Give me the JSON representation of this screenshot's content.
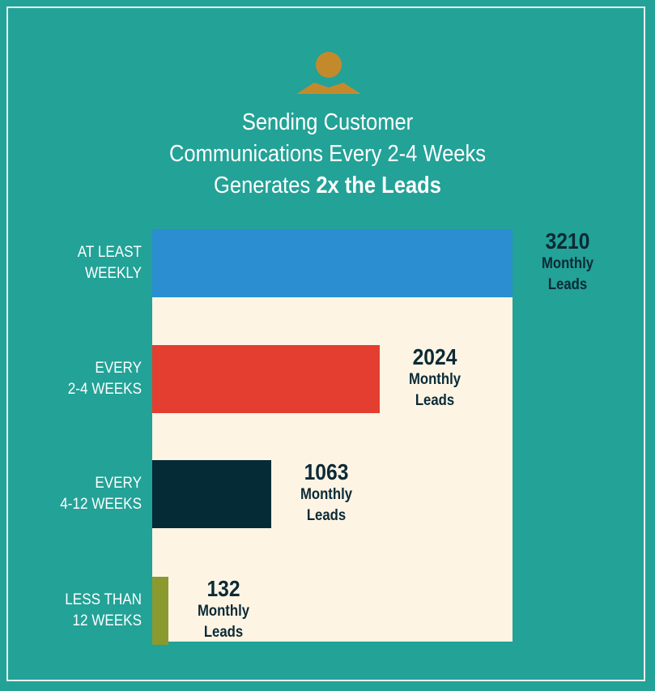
{
  "header": {
    "title_line1": "Sending Customer",
    "title_line2": "Communications Every 2-4 Weeks",
    "title_line3_plain": "Generates ",
    "title_line3_bold": "2x the Leads"
  },
  "colors": {
    "background": "#23a297",
    "panel": "#fdf4e4",
    "icon": "#c38a2c",
    "value_text": "#0b2a36"
  },
  "icon": {
    "name": "person-icon"
  },
  "chart_data": {
    "type": "bar",
    "orientation": "horizontal",
    "title": "Sending Customer Communications Every 2-4 Weeks Generates 2x the Leads",
    "xlim": [
      0,
      3210
    ],
    "grid": false,
    "categories": [
      [
        "AT LEAST",
        "WEEKLY"
      ],
      [
        "EVERY",
        "2-4 WEEKS"
      ],
      [
        "EVERY",
        "4-12 WEEKS"
      ],
      [
        "LESS THAN",
        "12 WEEKS"
      ]
    ],
    "values": [
      3210,
      2024,
      1063,
      132
    ],
    "value_unit_line1": "Monthly",
    "value_unit_line2": "Leads",
    "bar_colors": [
      "#2a8ed1",
      "#e33e30",
      "#052b37",
      "#8a9a2f"
    ]
  }
}
